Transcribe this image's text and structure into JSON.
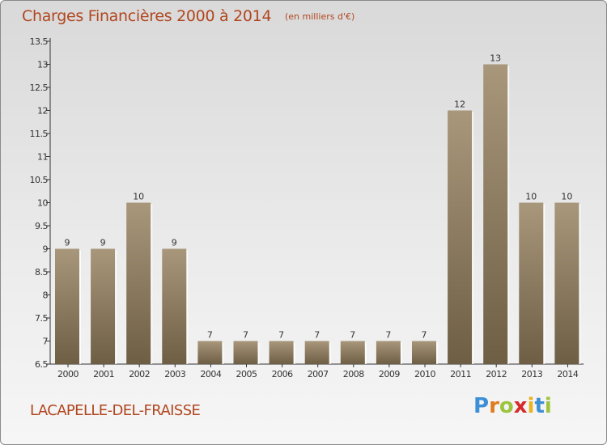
{
  "header": {
    "title": "Charges Financières 2000 à 2014",
    "subtitle": "(en milliers d'€)"
  },
  "footer": {
    "commune": "LACAPELLE-DEL-FRAISSE",
    "logo": [
      "P",
      "r",
      "o",
      "x",
      "i",
      "t",
      "i"
    ]
  },
  "colors": {
    "title": "#b1461f",
    "bar_top": "#a8977b",
    "bar_bottom": "#6e5e44",
    "axis": "#333333"
  },
  "chart_data": {
    "type": "bar",
    "categories": [
      "2000",
      "2001",
      "2002",
      "2003",
      "2004",
      "2005",
      "2006",
      "2007",
      "2008",
      "2009",
      "2010",
      "2011",
      "2012",
      "2013",
      "2014"
    ],
    "values": [
      9,
      9,
      10,
      9,
      7,
      7,
      7,
      7,
      7,
      7,
      7,
      12,
      13,
      10,
      10
    ],
    "data_labels": [
      "9",
      "9",
      "10",
      "9",
      "7",
      "7",
      "7",
      "7",
      "7",
      "7",
      "7",
      "12",
      "13",
      "10",
      "10"
    ],
    "yticks": [
      "6.5",
      "7",
      "7.5",
      "8",
      "8.5",
      "9",
      "9.5",
      "10",
      "10.5",
      "11",
      "11.5",
      "12",
      "12.5",
      "13",
      "13.5"
    ],
    "ylim": [
      6.5,
      13.5
    ],
    "grid": false,
    "legend": "none",
    "title": "Charges Financières 2000 à 2014",
    "xlabel": "",
    "ylabel": ""
  }
}
